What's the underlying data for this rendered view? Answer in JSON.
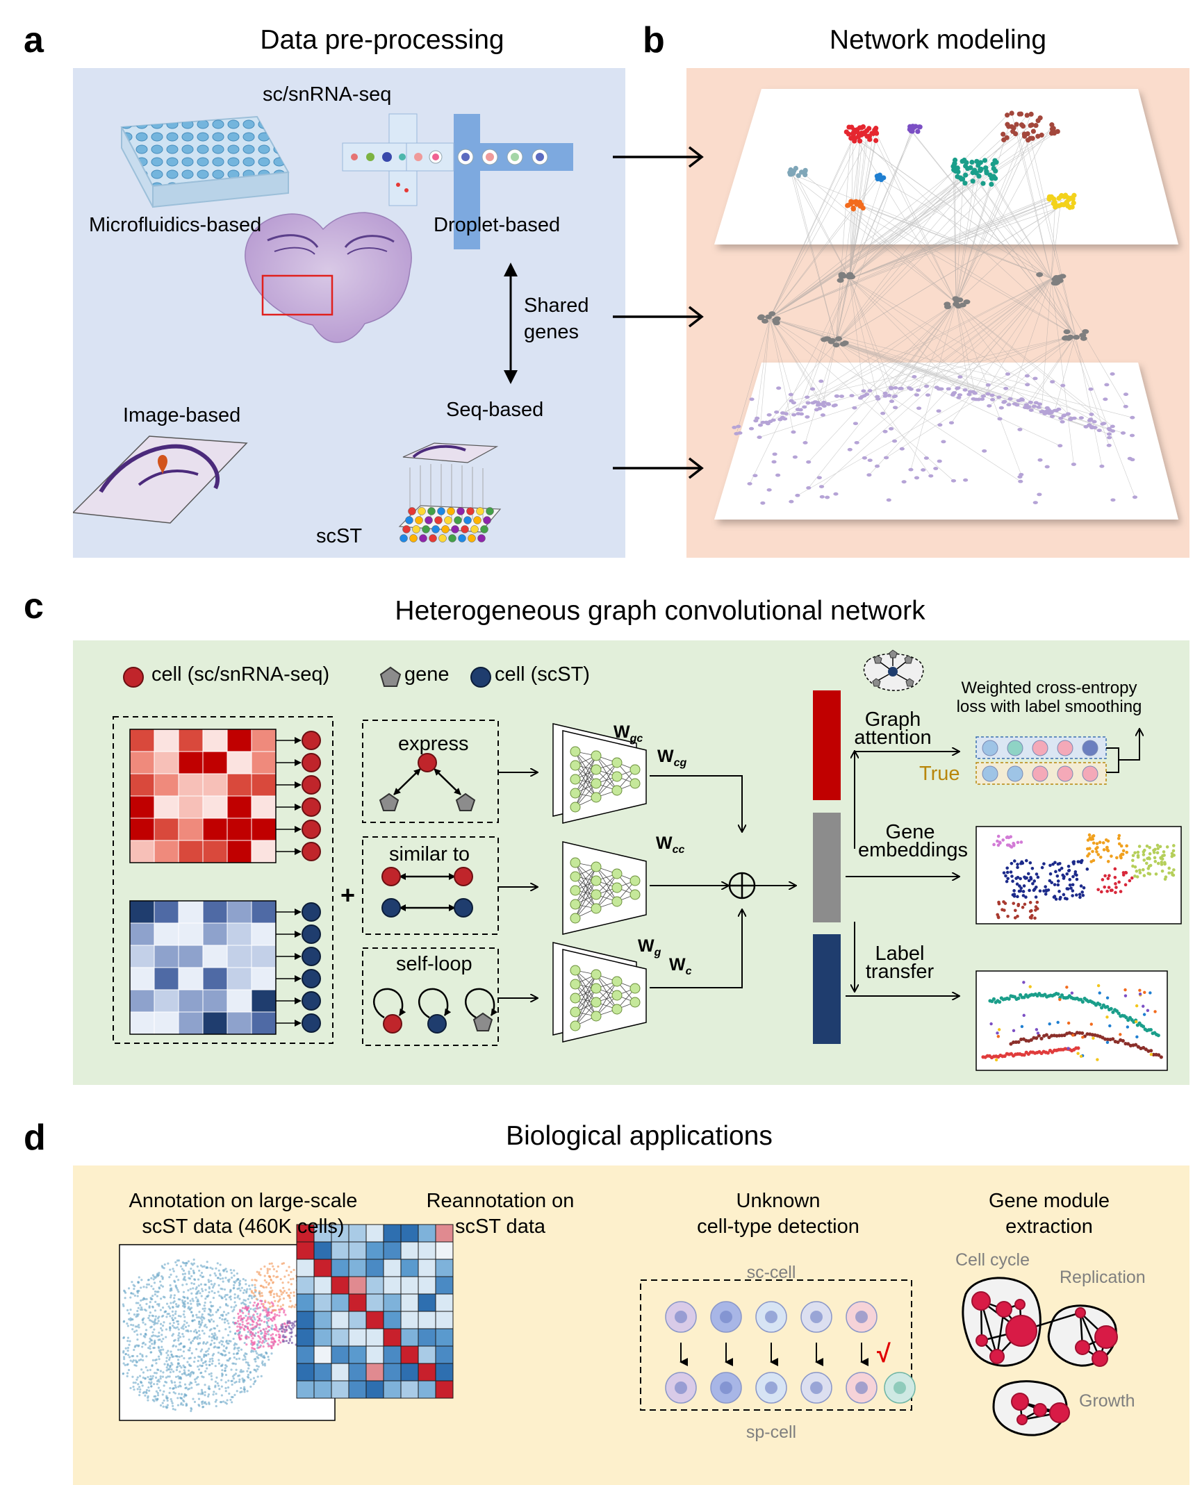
{
  "panels": {
    "a": {
      "letter": "a",
      "title": "Data pre-processing"
    },
    "b": {
      "letter": "b",
      "title": "Network modeling"
    },
    "c": {
      "letter": "c",
      "title": "Heterogeneous graph convolutional network"
    },
    "d": {
      "letter": "d",
      "title": "Biological applications"
    }
  },
  "panel_a": {
    "sc_label": "sc/snRNA-seq",
    "microfluidics": "Microfluidics-based",
    "droplet": "Droplet-based",
    "shared_genes_1": "Shared",
    "shared_genes_2": "genes",
    "image_based": "Image-based",
    "seq_based": "Seq-based",
    "scst": "scST"
  },
  "panel_c": {
    "legend": {
      "cell_sc": "cell (sc/snRNA-seq)",
      "gene": "gene",
      "cell_st": "cell (scST)"
    },
    "plus": "+",
    "relations": {
      "express": "express",
      "similar": "similar to",
      "selfloop": "self-loop"
    },
    "weights": {
      "w_gc": {
        "main": "W",
        "sub": "gc"
      },
      "w_cg": {
        "main": "W",
        "sub": "cg"
      },
      "w_cc": {
        "main": "W",
        "sub": "cc"
      },
      "w_g": {
        "main": "W",
        "sub": "g"
      },
      "w_c": {
        "main": "W",
        "sub": "c"
      }
    },
    "graph_attention_1": "Graph",
    "graph_attention_2": "attention",
    "loss_1": "Weighted cross-entropy",
    "loss_2": "loss with label smoothing",
    "true_label": "True",
    "gene_emb_1": "Gene",
    "gene_emb_2": "embeddings",
    "label_transfer_1": "Label",
    "label_transfer_2": "transfer"
  },
  "panel_d": {
    "app1_1": "Annotation on large-scale",
    "app1_2": "scST data (460K cells)",
    "app2_1": "Reannotation on",
    "app2_2": "scST data",
    "app3_1": "Unknown",
    "app3_2": "cell-type detection",
    "sc_cell": "sc-cell",
    "sp_cell": "sp-cell",
    "check": "√",
    "app4_1": "Gene module",
    "app4_2": "extraction",
    "module_cell_cycle": "Cell cycle",
    "module_replication": "Replication",
    "module_growth": "Growth"
  },
  "colors": {
    "panel_a_bg": "#dae3f3",
    "panel_b_bg": "#fadccc",
    "panel_c_bg": "#e2efda",
    "panel_d_bg": "#fdf0cc",
    "cell_sc": "#c0252b",
    "cell_st": "#1f3d6e",
    "gene": "#8c8c8c",
    "true_label": "#b8860b"
  }
}
